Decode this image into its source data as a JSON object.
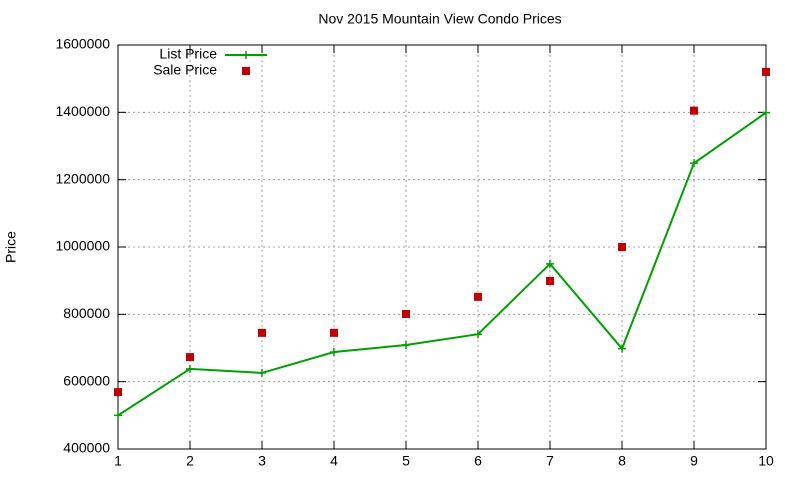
{
  "chart_data": {
    "type": "line",
    "title": "Nov 2015 Mountain View Condo Prices",
    "y_label": "Price",
    "x": [
      1,
      2,
      3,
      4,
      5,
      6,
      7,
      8,
      9,
      10
    ],
    "series": [
      {
        "name": "List Price",
        "color": "#00a000",
        "style": "linespoints",
        "values": [
          500000,
          638000,
          626000,
          688000,
          709000,
          741000,
          950000,
          698000,
          1249000,
          1399000
        ]
      },
      {
        "name": "Sale Price",
        "color": "#c00000",
        "style": "points",
        "values": [
          569000,
          673000,
          745000,
          745000,
          801000,
          852000,
          899000,
          1000000,
          1405000,
          1520000
        ]
      }
    ],
    "xlim": [
      1,
      10
    ],
    "xticks": [
      1,
      2,
      3,
      4,
      5,
      6,
      7,
      8,
      9,
      10
    ],
    "ylim": [
      400000,
      1600000
    ],
    "yticks": [
      400000,
      600000,
      800000,
      1000000,
      1200000,
      1400000,
      1600000
    ],
    "grid": true,
    "legend": "top-left"
  }
}
